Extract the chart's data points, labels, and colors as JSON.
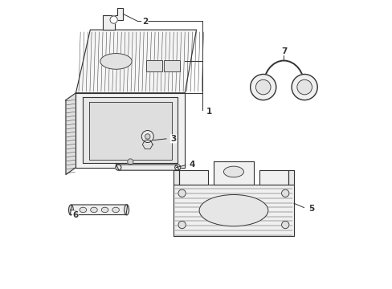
{
  "title": "",
  "background_color": "#ffffff",
  "line_color": "#333333",
  "label_color": "#000000",
  "figsize": [
    4.89,
    3.6
  ],
  "dpi": 100
}
